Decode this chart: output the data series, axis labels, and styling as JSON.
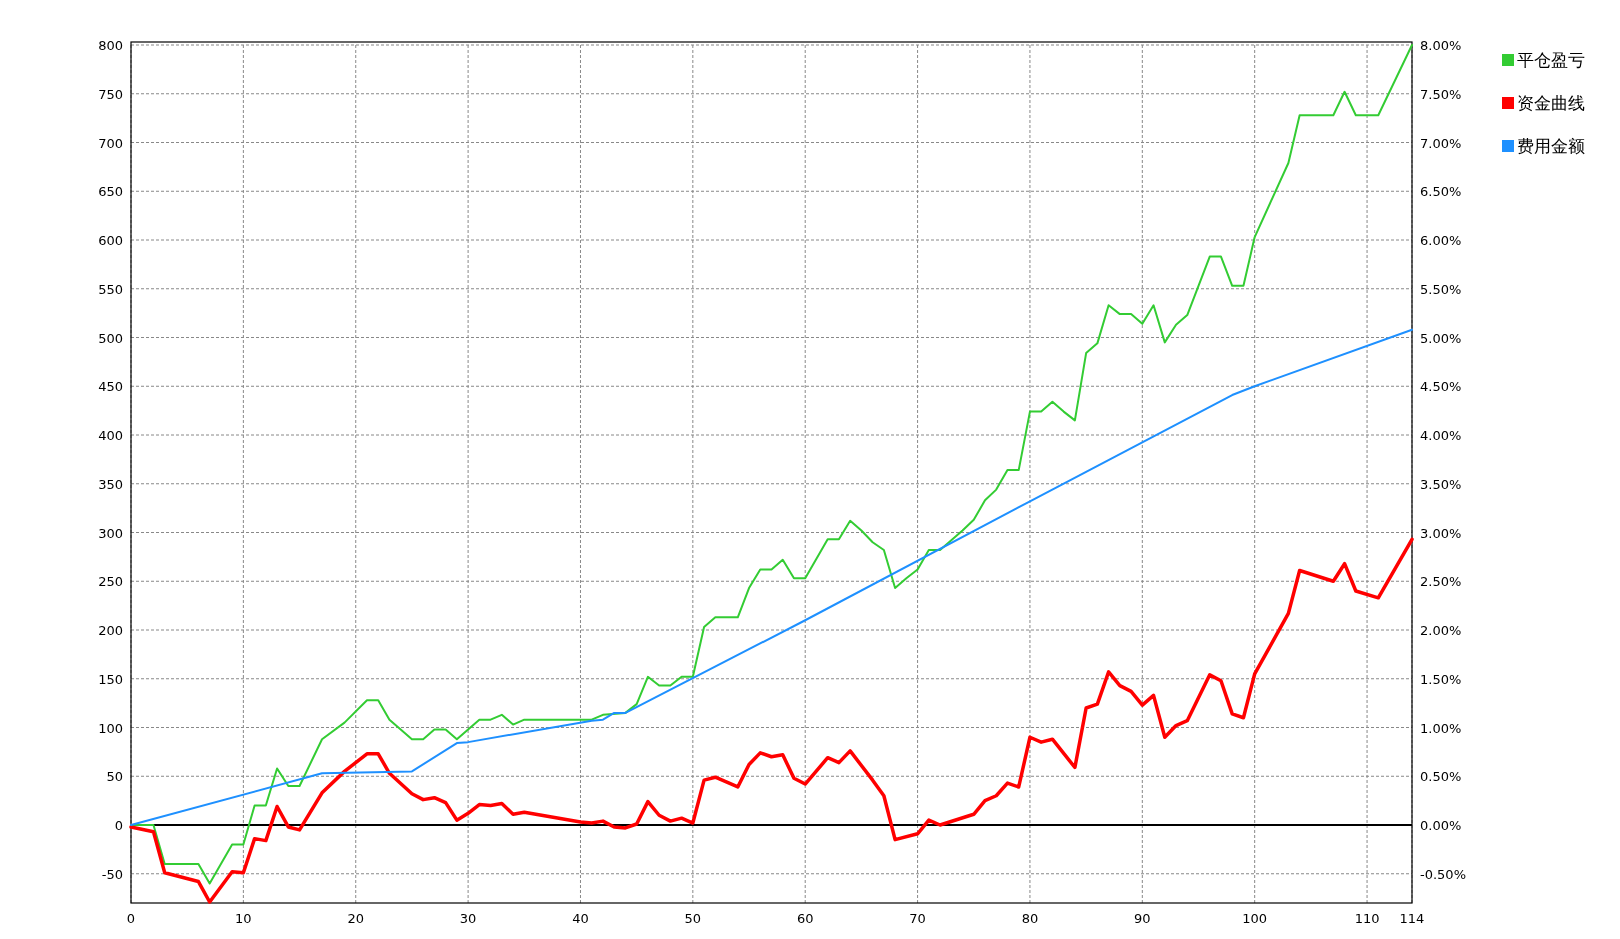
{
  "chart_data": {
    "type": "line",
    "xlim": [
      0,
      114
    ],
    "xticks": [
      0,
      10,
      20,
      30,
      40,
      50,
      60,
      70,
      80,
      90,
      100,
      110,
      114
    ],
    "ylim": [
      -80,
      800
    ],
    "yticks": [
      -50,
      0,
      50,
      100,
      150,
      200,
      250,
      300,
      350,
      400,
      450,
      500,
      550,
      600,
      650,
      700,
      750,
      800
    ],
    "y2lim": [
      -0.8,
      8.0
    ],
    "y2ticks": [
      {
        "value": -0.5,
        "label": "-0.50%"
      },
      {
        "value": 0,
        "label": "0.00%"
      },
      {
        "value": 0.5,
        "label": "0.50%"
      },
      {
        "value": 1,
        "label": "1.00%"
      },
      {
        "value": 1.5,
        "label": "1.50%"
      },
      {
        "value": 2,
        "label": "2.00%"
      },
      {
        "value": 2.5,
        "label": "2.50%"
      },
      {
        "value": 3,
        "label": "3.00%"
      },
      {
        "value": 3.5,
        "label": "3.50%"
      },
      {
        "value": 4,
        "label": "4.00%"
      },
      {
        "value": 4.5,
        "label": "4.50%"
      },
      {
        "value": 5,
        "label": "5.00%"
      },
      {
        "value": 5.5,
        "label": "5.50%"
      },
      {
        "value": 6,
        "label": "6.00%"
      },
      {
        "value": 6.5,
        "label": "6.50%"
      },
      {
        "value": 7,
        "label": "7.00%"
      },
      {
        "value": 7.5,
        "label": "7.50%"
      },
      {
        "value": 8,
        "label": "8.00%"
      }
    ],
    "grid": true,
    "legend": "top right",
    "marker": "none",
    "line_style": "solid",
    "ref_lines": [
      {
        "axis": "y",
        "value": 0,
        "color": "#000000"
      }
    ],
    "series": [
      {
        "name": "平仓盈亏",
        "color": "#33cc33",
        "x": [
          0,
          2,
          3,
          6,
          7,
          9,
          10,
          11,
          12,
          13,
          14,
          15,
          17,
          19,
          21,
          22,
          23,
          25,
          26,
          27,
          28,
          29,
          31,
          32,
          33,
          34,
          35,
          41,
          42,
          44,
          45,
          46,
          47,
          48,
          49,
          50,
          51,
          52,
          54,
          55,
          56,
          57,
          58,
          59,
          60,
          62,
          63,
          64,
          65,
          66,
          67,
          68,
          69,
          70,
          71,
          72,
          73,
          74,
          75,
          76,
          77,
          78,
          79,
          80,
          81,
          82,
          83,
          84,
          85,
          86,
          87,
          88,
          89,
          90,
          91,
          92,
          93,
          94,
          96,
          97,
          98,
          99,
          100,
          103,
          104,
          107,
          108,
          109,
          111,
          114
        ],
        "values": [
          0,
          0,
          -40,
          -40,
          -60,
          -20,
          -20,
          20,
          20,
          58,
          40,
          40,
          88,
          105,
          128,
          128,
          108,
          88,
          88,
          98,
          98,
          88,
          108,
          108,
          113,
          103,
          108,
          108,
          113,
          115,
          124,
          152,
          143,
          143,
          152,
          152,
          203,
          213,
          213,
          243,
          262,
          262,
          272,
          253,
          253,
          293,
          293,
          312,
          302,
          290,
          282,
          243,
          253,
          262,
          282,
          282,
          292,
          302,
          313,
          333,
          344,
          364,
          364,
          424,
          424,
          434,
          424,
          415,
          484,
          494,
          533,
          524,
          524,
          514,
          533,
          495,
          513,
          523,
          583,
          583,
          553,
          553,
          603,
          679,
          728,
          728,
          752,
          728,
          728,
          800
        ]
      },
      {
        "name": "资金曲线",
        "color": "#ff0000",
        "x": [
          0,
          2,
          3,
          6,
          7,
          9,
          10,
          11,
          12,
          13,
          14,
          15,
          17,
          19,
          21,
          22,
          23,
          25,
          26,
          27,
          28,
          29,
          30,
          31,
          32,
          33,
          34,
          35,
          40,
          41,
          42,
          43,
          44,
          45,
          46,
          47,
          48,
          49,
          50,
          51,
          52,
          54,
          55,
          56,
          57,
          58,
          59,
          60,
          62,
          63,
          64,
          66,
          67,
          68,
          70,
          71,
          72,
          75,
          76,
          77,
          78,
          79,
          80,
          81,
          82,
          84,
          85,
          86,
          87,
          88,
          89,
          90,
          91,
          92,
          93,
          94,
          96,
          97,
          98,
          99,
          100,
          103,
          104,
          107,
          108,
          109,
          111,
          114
        ],
        "values": [
          -2,
          -7,
          -49,
          -58,
          -79,
          -48,
          -49,
          -14,
          -16,
          19,
          -2,
          -5,
          33,
          55,
          73,
          73,
          53,
          32,
          26,
          28,
          23,
          5,
          12,
          21,
          20,
          22,
          11,
          13,
          3,
          2,
          4,
          -2,
          -3,
          1,
          24,
          10,
          4,
          7,
          2,
          46,
          49,
          39,
          62,
          74,
          70,
          72,
          48,
          42,
          69,
          64,
          76,
          46,
          30,
          -15,
          -9,
          5,
          0,
          11,
          25,
          30,
          43,
          39,
          90,
          85,
          88,
          59,
          120,
          124,
          157,
          143,
          137,
          123,
          133,
          90,
          102,
          107,
          154,
          148,
          114,
          110,
          155,
          217,
          261,
          250,
          268,
          240,
          233,
          293
        ]
      },
      {
        "name": "费用金额",
        "color": "#1e90ff",
        "x": [
          0,
          17,
          25,
          29,
          30,
          41,
          42,
          43,
          44,
          60,
          80,
          98,
          100,
          114
        ],
        "values": [
          0,
          53,
          55,
          84,
          85,
          107,
          108,
          115,
          115,
          210,
          332,
          441,
          450,
          508
        ]
      }
    ]
  }
}
